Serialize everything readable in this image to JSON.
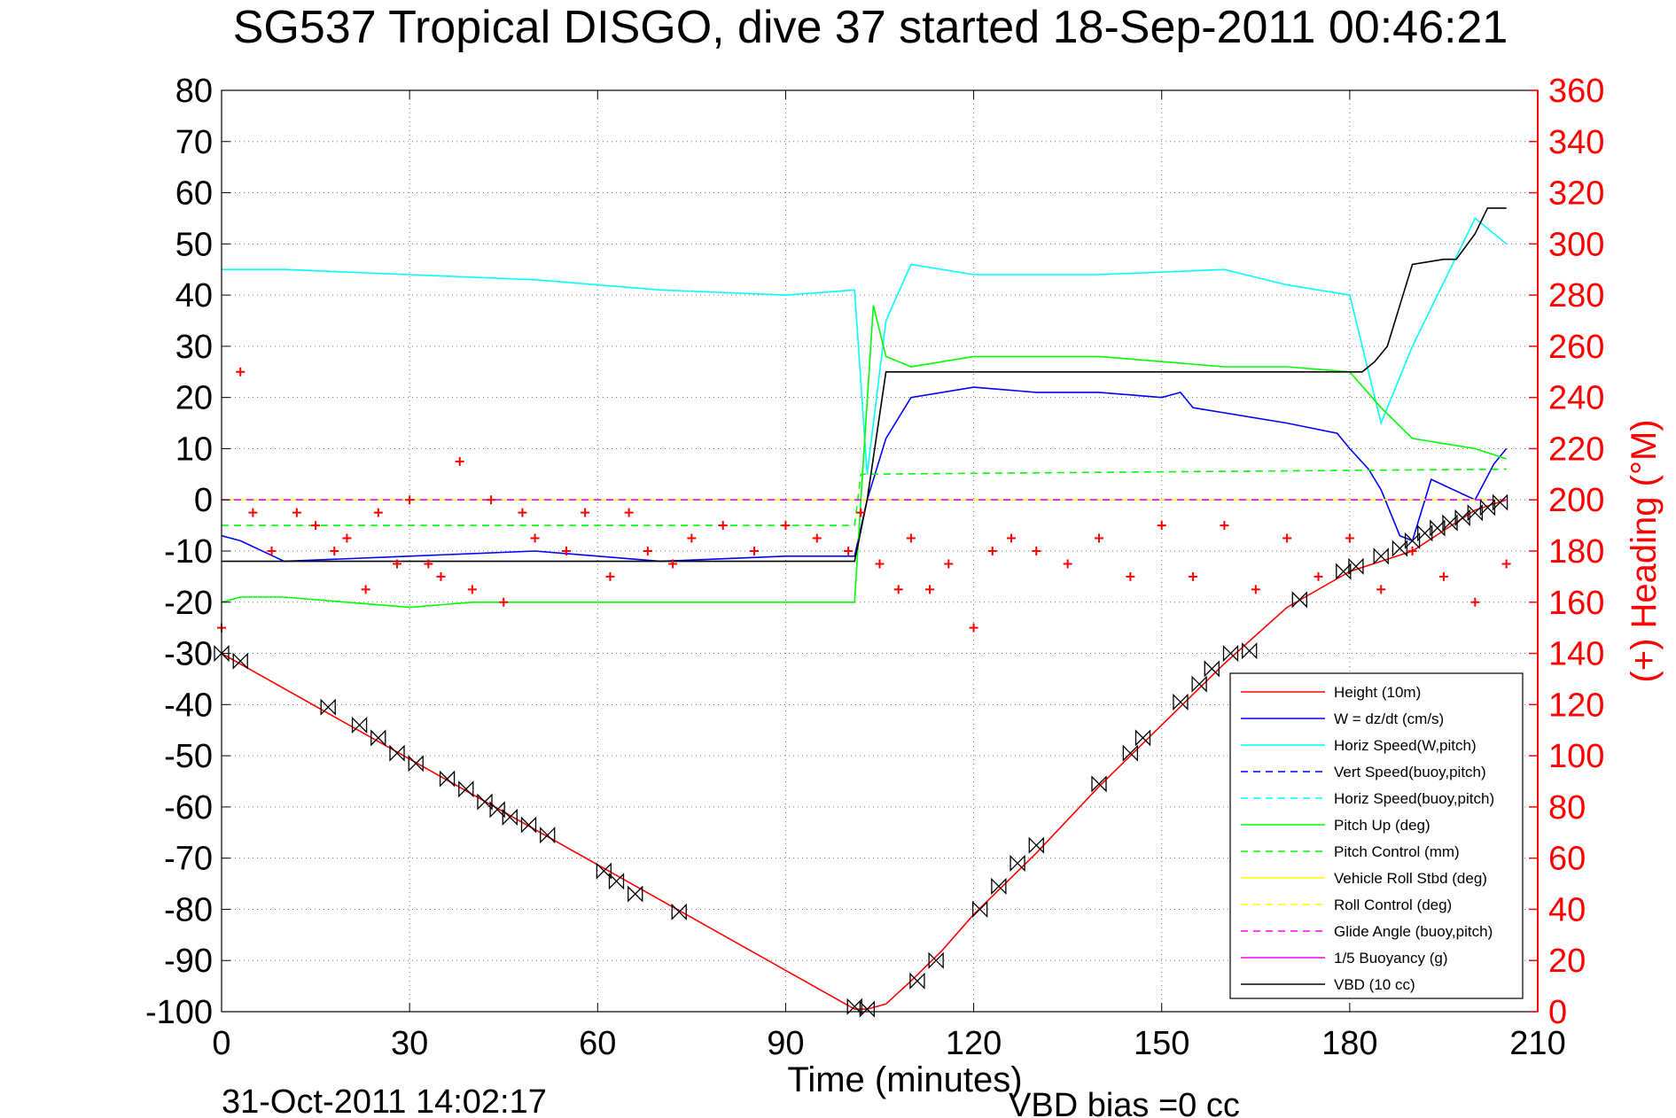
{
  "chart_data": {
    "type": "line",
    "title": "SG537 Tropical DISGO, dive 37 started 18-Sep-2011 00:46:21",
    "xlabel": "Time (minutes)",
    "ylabel": "",
    "y2label": "(+) Heading (°M)",
    "xlim": [
      0,
      210
    ],
    "ylim": [
      -100,
      80
    ],
    "y2lim": [
      0,
      360
    ],
    "xticks": [
      "0",
      "30",
      "60",
      "90",
      "120",
      "150",
      "180",
      "210"
    ],
    "yticks": [
      "80",
      "70",
      "60",
      "50",
      "40",
      "30",
      "20",
      "10",
      "0",
      "-10",
      "-20",
      "-30",
      "-40",
      "-50",
      "-60",
      "-70",
      "-80",
      "-90",
      "-100"
    ],
    "y2ticks": [
      "360",
      "340",
      "320",
      "300",
      "280",
      "260",
      "240",
      "220",
      "200",
      "180",
      "160",
      "140",
      "120",
      "100",
      "80",
      "60",
      "40",
      "20",
      "0"
    ],
    "grid": true,
    "legend_position": "bottom-right",
    "footer_left": "31-Oct-2011 14:02:17",
    "footer_right": "VBD bias =0 cc",
    "colors": {
      "height": "#ff0000",
      "w": "#0000ff",
      "horiz": "#00ffff",
      "pitch": "#00ff00",
      "roll": "#ffff00",
      "glide": "#ff00ff",
      "vbd": "#000000",
      "heading": "#ff0000"
    },
    "series": [
      {
        "name": "Height (10m)",
        "color": "#ff0000",
        "style": "solid",
        "x": [
          0,
          101,
          103,
          106,
          110,
          115,
          120,
          130,
          140,
          150,
          160,
          170,
          180,
          190,
          200,
          205
        ],
        "y": [
          -30,
          -99.5,
          -99.5,
          -98.5,
          -94,
          -88,
          -81,
          -69,
          -56,
          -44,
          -32,
          -21,
          -14,
          -10,
          -2,
          0
        ]
      },
      {
        "name": "W = dz/dt (cm/s)",
        "color": "#0000ff",
        "style": "solid",
        "x": [
          0,
          3,
          10,
          30,
          50,
          70,
          90,
          101,
          103,
          106,
          110,
          120,
          130,
          140,
          150,
          153,
          155,
          160,
          170,
          178,
          180,
          183,
          185,
          188,
          190,
          193,
          200,
          203,
          205
        ],
        "y": [
          -7,
          -8,
          -12,
          -11,
          -10,
          -12,
          -11,
          -11,
          0,
          12,
          20,
          22,
          21,
          21,
          20,
          21,
          18,
          17,
          15,
          13,
          10,
          6,
          2,
          -7,
          -8,
          4,
          0,
          7,
          10
        ]
      },
      {
        "name": "Horiz Speed(W,pitch)",
        "color": "#00ffff",
        "style": "solid",
        "x": [
          0,
          10,
          30,
          50,
          70,
          90,
          101,
          103,
          106,
          110,
          120,
          140,
          160,
          170,
          180,
          183,
          185,
          190,
          200,
          205
        ],
        "y": [
          45,
          45,
          44,
          43,
          41,
          40,
          41,
          5,
          35,
          46,
          44,
          44,
          45,
          42,
          40,
          25,
          15,
          30,
          55,
          50
        ]
      },
      {
        "name": "Vert Speed(buoy,pitch)",
        "color": "#0000ff",
        "style": "dashed",
        "x": [],
        "y": []
      },
      {
        "name": "Horiz Speed(buoy,pitch)",
        "color": "#00ffff",
        "style": "dashed",
        "x": [],
        "y": []
      },
      {
        "name": "Pitch Up (deg)",
        "color": "#00ff00",
        "style": "solid",
        "x": [
          0,
          3,
          10,
          20,
          30,
          40,
          60,
          80,
          101,
          102,
          104,
          106,
          110,
          120,
          140,
          150,
          160,
          170,
          180,
          185,
          190,
          200,
          205
        ],
        "y": [
          -20,
          -19,
          -19,
          -20,
          -21,
          -20,
          -20,
          -20,
          -20,
          0,
          38,
          28,
          26,
          28,
          28,
          27,
          26,
          26,
          25,
          18,
          12,
          10,
          8
        ]
      },
      {
        "name": "Pitch Control (mm)",
        "color": "#00ff00",
        "style": "dashed",
        "x": [
          0,
          101,
          102,
          205
        ],
        "y": [
          -5,
          -5,
          5,
          6
        ]
      },
      {
        "name": "Vehicle Roll Stbd (deg)",
        "color": "#ffff00",
        "style": "solid",
        "x": [
          0,
          50,
          101,
          102,
          150,
          205
        ],
        "y": [
          0,
          0,
          0,
          0,
          0,
          0
        ]
      },
      {
        "name": "Roll Control (deg)",
        "color": "#ffff00",
        "style": "dashed",
        "x": [],
        "y": []
      },
      {
        "name": "Glide Angle (buoy,pitch)",
        "color": "#ff00ff",
        "style": "dashed",
        "x": [
          0,
          205
        ],
        "y": [
          0,
          0
        ]
      },
      {
        "name": "1/5 Buoyancy (g)",
        "color": "#ff00ff",
        "style": "solid",
        "x": [],
        "y": []
      },
      {
        "name": "VBD (10 cc)",
        "color": "#000000",
        "style": "solid",
        "x": [
          0,
          101,
          103,
          106,
          182,
          184,
          186,
          188,
          190,
          195,
          197,
          200,
          202,
          205
        ],
        "y": [
          -12,
          -12,
          0,
          25,
          25,
          27,
          30,
          38,
          46,
          47,
          47,
          52,
          57,
          57
        ]
      }
    ],
    "heading": {
      "name": "Heading",
      "axis": "right",
      "marker": "+",
      "color": "#ff0000",
      "x": [
        0,
        3,
        5,
        8,
        12,
        15,
        18,
        20,
        23,
        25,
        28,
        30,
        33,
        35,
        38,
        40,
        43,
        45,
        48,
        50,
        55,
        58,
        62,
        65,
        68,
        72,
        75,
        80,
        85,
        90,
        95,
        100,
        102,
        105,
        108,
        110,
        113,
        116,
        120,
        123,
        126,
        130,
        135,
        140,
        145,
        150,
        155,
        160,
        165,
        170,
        175,
        180,
        185,
        190,
        195,
        200,
        205
      ],
      "y": [
        150,
        250,
        195,
        180,
        195,
        190,
        180,
        185,
        165,
        195,
        175,
        200,
        175,
        170,
        215,
        165,
        200,
        160,
        195,
        185,
        180,
        195,
        170,
        195,
        180,
        175,
        185,
        190,
        180,
        190,
        185,
        180,
        195,
        175,
        165,
        185,
        165,
        175,
        150,
        180,
        185,
        180,
        175,
        185,
        170,
        190,
        170,
        190,
        165,
        185,
        170,
        185,
        165,
        180,
        170,
        160,
        175
      ]
    },
    "diamonds": {
      "name": "",
      "marker": "bowtie",
      "color": "#000000",
      "x": [
        0,
        3,
        17,
        22,
        25,
        28,
        31,
        36,
        39,
        42,
        44,
        46,
        49,
        52,
        61,
        63,
        66,
        73,
        101,
        103,
        111,
        114,
        121,
        124,
        127,
        130,
        140,
        145,
        147,
        153,
        156,
        158,
        161,
        164,
        172,
        179,
        181,
        185,
        188,
        190,
        192,
        194,
        196,
        198,
        200,
        202,
        204
      ],
      "y": [
        -30,
        -31.5,
        -40.5,
        -44,
        -46.5,
        -49.5,
        -51.5,
        -54.5,
        -56.5,
        -59,
        -60.5,
        -62,
        -63.5,
        -65.5,
        -72.5,
        -74.5,
        -77,
        -80.5,
        -99,
        -99.5,
        -94,
        -90,
        -80,
        -75.5,
        -71,
        -67.5,
        -55.5,
        -49.5,
        -46.5,
        -39.5,
        -36,
        -33,
        -30,
        -29.5,
        -19.5,
        -14,
        -13,
        -11,
        -9.5,
        -8,
        -6.5,
        -5.5,
        -4.5,
        -3.5,
        -2.5,
        -1.5,
        -0.5
      ]
    }
  }
}
